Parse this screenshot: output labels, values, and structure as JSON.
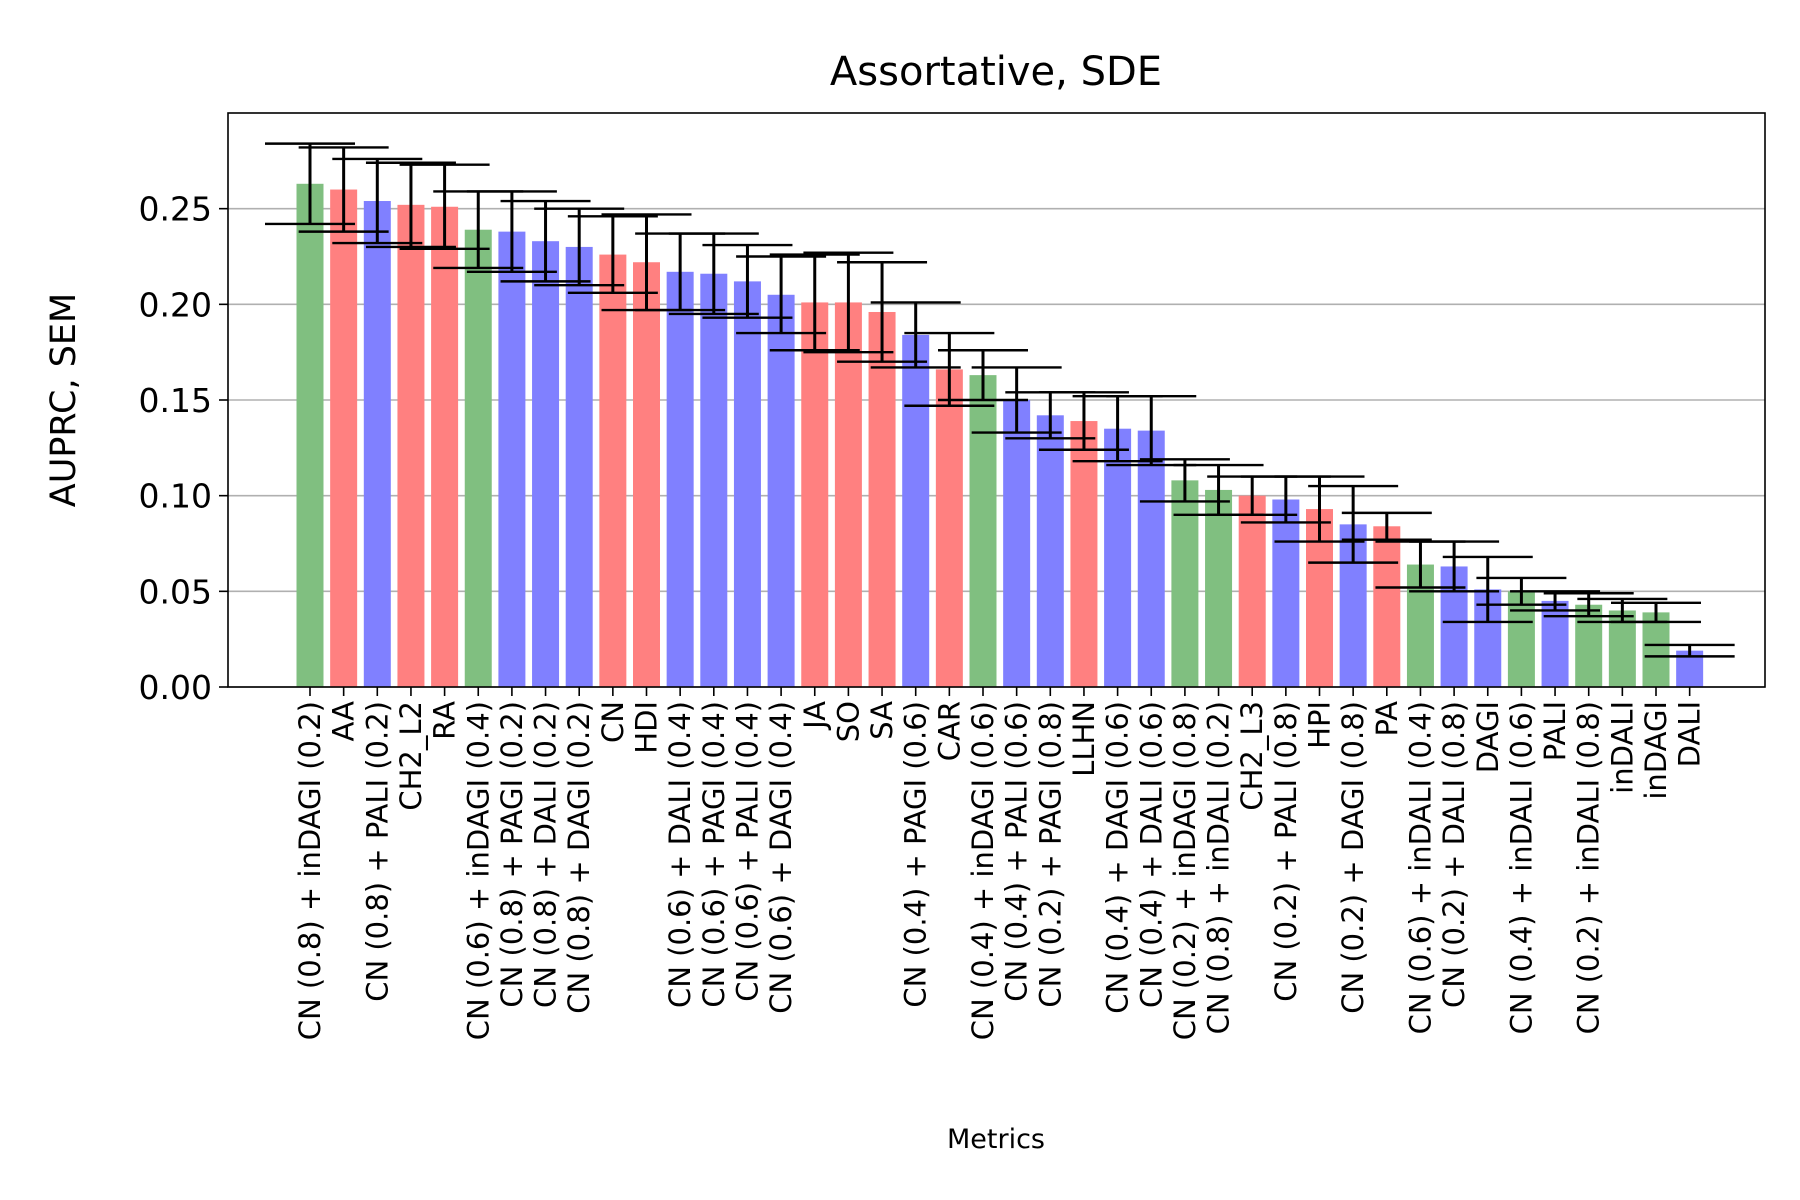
{
  "chart_data": {
    "type": "bar",
    "title": "Assortative, SDE",
    "xlabel": "Metrics",
    "ylabel": "AUPRC, SEM",
    "ylim": [
      0,
      0.3
    ],
    "yticks": [
      0.0,
      0.05,
      0.1,
      0.15,
      0.2,
      0.25
    ],
    "ytick_labels": [
      "0.00",
      "0.05",
      "0.10",
      "0.15",
      "0.20",
      "0.25"
    ],
    "grid": "horizontal",
    "colors": {
      "green": "#80bf80",
      "red": "#ff8080",
      "blue": "#8080ff",
      "errorbar": "#000000",
      "grid": "#b0b0b0"
    },
    "categories": [
      "CN (0.8) + inDAGI (0.2)",
      "AA",
      "CN (0.8) + PALI (0.2)",
      "CH2_L2",
      "RA",
      "CN (0.6) + inDAGI (0.4)",
      "CN (0.8) + PAGI (0.2)",
      "CN (0.8) + DALI (0.2)",
      "CN (0.8) + DAGI (0.2)",
      "CN",
      "HDI",
      "CN (0.6) + DALI (0.4)",
      "CN (0.6) + PAGI (0.4)",
      "CN (0.6) + PALI (0.4)",
      "CN (0.6) + DAGI (0.4)",
      "JA",
      "SO",
      "SA",
      "CN (0.4) + PAGI (0.6)",
      "CAR",
      "CN (0.4) + inDAGI (0.6)",
      "CN (0.4) + PALI (0.6)",
      "CN (0.2) + PAGI (0.8)",
      "LLHN",
      "CN (0.4) + DAGI (0.6)",
      "CN (0.4) + DALI (0.6)",
      "CN (0.2) + inDAGI (0.8)",
      "CN (0.8) + inDALI (0.2)",
      "CH2_L3",
      "CN (0.2) + PALI (0.8)",
      "HPI",
      "CN (0.2) + DAGI (0.8)",
      "PA",
      "CN (0.6) + inDALI (0.4)",
      "CN (0.2) + DALI (0.8)",
      "DAGI",
      "CN (0.4) + inDALI (0.6)",
      "PALI",
      "CN (0.2) + inDALI (0.8)",
      "inDALI",
      "inDAGI",
      "DALI"
    ],
    "values": [
      0.263,
      0.26,
      0.254,
      0.252,
      0.251,
      0.239,
      0.238,
      0.233,
      0.23,
      0.226,
      0.222,
      0.217,
      0.216,
      0.212,
      0.205,
      0.201,
      0.201,
      0.196,
      0.184,
      0.166,
      0.163,
      0.15,
      0.142,
      0.139,
      0.135,
      0.134,
      0.108,
      0.103,
      0.1,
      0.098,
      0.093,
      0.085,
      0.084,
      0.064,
      0.063,
      0.051,
      0.05,
      0.045,
      0.043,
      0.04,
      0.039,
      0.019
    ],
    "errors": [
      0.021,
      0.022,
      0.022,
      0.022,
      0.022,
      0.02,
      0.021,
      0.021,
      0.02,
      0.02,
      0.025,
      0.02,
      0.021,
      0.019,
      0.02,
      0.025,
      0.026,
      0.026,
      0.017,
      0.019,
      0.013,
      0.017,
      0.012,
      0.015,
      0.017,
      0.018,
      0.011,
      0.013,
      0.01,
      0.012,
      0.017,
      0.02,
      0.007,
      0.012,
      0.013,
      0.017,
      0.007,
      0.005,
      0.006,
      0.006,
      0.005,
      0.003
    ],
    "bar_colors": [
      "green",
      "red",
      "blue",
      "red",
      "red",
      "green",
      "blue",
      "blue",
      "blue",
      "red",
      "red",
      "blue",
      "blue",
      "blue",
      "blue",
      "red",
      "red",
      "red",
      "blue",
      "red",
      "green",
      "blue",
      "blue",
      "red",
      "blue",
      "blue",
      "green",
      "green",
      "red",
      "blue",
      "red",
      "blue",
      "red",
      "green",
      "blue",
      "blue",
      "green",
      "blue",
      "green",
      "green",
      "green",
      "blue"
    ]
  }
}
